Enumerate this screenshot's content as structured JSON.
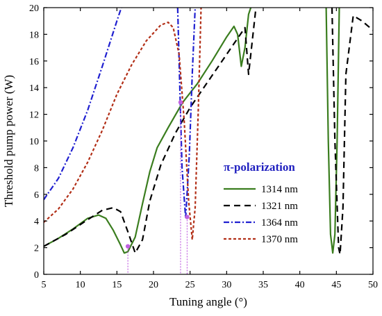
{
  "chart_data": {
    "type": "line",
    "xlabel": "Tuning angle (°)",
    "ylabel": "Threshold pump power (W)",
    "xlim": [
      5,
      50
    ],
    "ylim": [
      0,
      20
    ],
    "xticks": [
      "5",
      "10",
      "15",
      "20",
      "25",
      "30",
      "35",
      "40",
      "45",
      "50"
    ],
    "yticks": [
      "0",
      "2",
      "4",
      "6",
      "8",
      "10",
      "12",
      "14",
      "16",
      "18",
      "20"
    ],
    "legend_title": "π-polarization",
    "legend_title_color": "#1f1fbf",
    "legend_position": "center-right",
    "grid": false,
    "series": [
      {
        "name": "1314 nm",
        "color": "#3a7d1e",
        "dash": "solid",
        "segments": [
          [
            [
              5,
              2.1
            ],
            [
              7,
              2.7
            ],
            [
              9,
              3.4
            ],
            [
              11,
              4.2
            ],
            [
              12.5,
              4.45
            ],
            [
              13.5,
              4.2
            ],
            [
              14.5,
              3.3
            ],
            [
              15.5,
              2.2
            ],
            [
              16,
              1.6
            ],
            [
              16.5,
              1.7
            ],
            [
              17.5,
              2.8
            ],
            [
              18.5,
              5.3
            ],
            [
              19.5,
              7.7
            ],
            [
              20.5,
              9.5
            ],
            [
              22,
              11.0
            ],
            [
              24,
              12.9
            ],
            [
              26,
              14.3
            ],
            [
              28,
              16.0
            ],
            [
              30,
              17.8
            ],
            [
              31,
              18.6
            ],
            [
              31.5,
              18.0
            ],
            [
              32,
              15.6
            ],
            [
              32.5,
              17.0
            ],
            [
              33,
              19.5
            ],
            [
              33.3,
              20
            ]
          ],
          [
            [
              43.6,
              20
            ],
            [
              43.9,
              10
            ],
            [
              44.2,
              3
            ],
            [
              44.5,
              1.6
            ],
            [
              44.8,
              3
            ],
            [
              45.1,
              10
            ],
            [
              45.4,
              20
            ]
          ]
        ]
      },
      {
        "name": "1321 nm",
        "color": "#000000",
        "dash": "9,6",
        "segments": [
          [
            [
              5,
              2.1
            ],
            [
              8,
              3.0
            ],
            [
              11,
              4.1
            ],
            [
              13,
              4.8
            ],
            [
              14.5,
              5.0
            ],
            [
              15.5,
              4.7
            ],
            [
              16.5,
              3.2
            ],
            [
              17.5,
              1.6
            ],
            [
              18.5,
              2.6
            ],
            [
              19.5,
              5.5
            ],
            [
              21,
              8.2
            ],
            [
              23,
              10.6
            ],
            [
              25,
              12.5
            ],
            [
              27,
              14.1
            ],
            [
              29,
              15.7
            ],
            [
              31,
              17.3
            ],
            [
              32.5,
              18.5
            ],
            [
              33,
              15.0
            ],
            [
              33.5,
              17.5
            ],
            [
              34,
              20
            ]
          ],
          [
            [
              44.4,
              20
            ],
            [
              44.8,
              10
            ],
            [
              45.3,
              2
            ],
            [
              45.5,
              1.5
            ],
            [
              45.9,
              5
            ],
            [
              46.3,
              15
            ],
            [
              47.3,
              19.4
            ],
            [
              48.5,
              19.0
            ],
            [
              50,
              18.3
            ]
          ]
        ]
      },
      {
        "name": "1364 nm",
        "color": "#1f1fd0",
        "dash": "8,3,2,3",
        "segments": [
          [
            [
              5,
              5.6
            ],
            [
              7,
              7.2
            ],
            [
              9,
              9.5
            ],
            [
              11,
              12.3
            ],
            [
              13,
              15.6
            ],
            [
              15,
              19.0
            ],
            [
              15.6,
              20
            ]
          ],
          [
            [
              23.3,
              20
            ],
            [
              23.6,
              14
            ],
            [
              23.9,
              8
            ],
            [
              24.4,
              4.2
            ],
            [
              24.9,
              9
            ],
            [
              25.3,
              15
            ],
            [
              25.7,
              20
            ]
          ]
        ]
      },
      {
        "name": "1370 nm",
        "color": "#b22e16",
        "dash": "4,3",
        "segments": [
          [
            [
              5,
              3.9
            ],
            [
              7,
              4.9
            ],
            [
              9,
              6.4
            ],
            [
              11,
              8.4
            ],
            [
              13,
              10.8
            ],
            [
              15,
              13.5
            ],
            [
              17,
              15.7
            ],
            [
              19,
              17.5
            ],
            [
              21,
              18.7
            ],
            [
              22,
              18.9
            ],
            [
              22.7,
              18.5
            ],
            [
              23.5,
              16.5
            ],
            [
              24.2,
              11.5
            ],
            [
              24.8,
              5.5
            ],
            [
              25.3,
              2.6
            ],
            [
              25.7,
              5
            ],
            [
              26.1,
              12
            ],
            [
              26.5,
              20
            ]
          ]
        ]
      }
    ],
    "markers": [
      {
        "x": 16.5,
        "y": 2.1
      },
      {
        "x": 23.7,
        "y": 12.9
      },
      {
        "x": 24.6,
        "y": 4.3
      }
    ],
    "marker_color": "#c060e0"
  }
}
